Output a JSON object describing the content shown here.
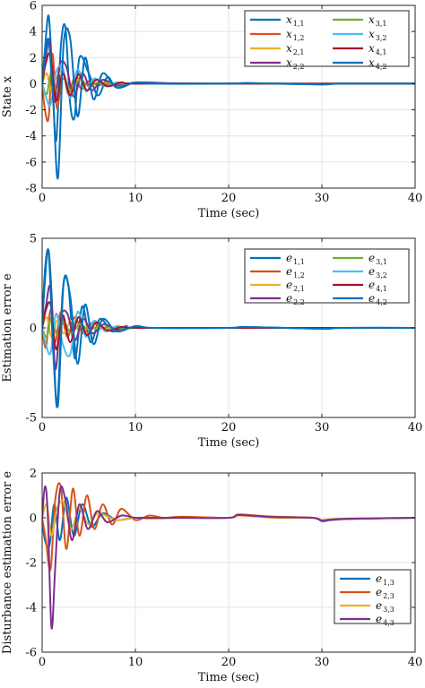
{
  "chart_data": [
    {
      "type": "line",
      "title": "",
      "xlabel": "Time (sec)",
      "ylabel": "State x",
      "xlim": [
        0,
        40
      ],
      "ylim": [
        -8,
        6
      ],
      "xticks": [
        0,
        10,
        20,
        30,
        40
      ],
      "yticks": [
        -8,
        -6,
        -4,
        -2,
        0,
        2,
        4,
        6
      ],
      "grid": true,
      "legend": {
        "placement": "top-right",
        "columns": 2
      },
      "series": [
        {
          "name": "x",
          "sub": "1,1",
          "color": "#0072BD",
          "x": [
            0,
            0.3,
            0.7,
            1.1,
            1.5,
            2.0,
            2.5,
            3.0,
            3.5,
            4.0,
            5.0,
            6.0,
            7.0,
            8.0,
            10.0,
            15.0,
            20.0,
            22.0,
            25.0,
            30.0,
            32.0,
            40.0
          ],
          "y": [
            0,
            2.6,
            5.2,
            0.5,
            -4.4,
            2.8,
            4.3,
            -1.5,
            -2.5,
            2.0,
            0.8,
            -0.9,
            0.5,
            -0.3,
            0.1,
            0.0,
            0.0,
            0.05,
            0.0,
            -0.05,
            0.0,
            0.0
          ]
        },
        {
          "name": "x",
          "sub": "1,2",
          "color": "#D95319",
          "x": [
            0,
            0.3,
            0.7,
            1.1,
            1.6,
            2.2,
            2.8,
            3.5,
            4.2,
            5.0,
            6.0,
            8.0,
            10.0,
            20.0,
            30.0,
            40.0
          ],
          "y": [
            0,
            -2.0,
            -2.6,
            2.3,
            -1.9,
            1.0,
            -0.8,
            0.5,
            -0.4,
            0.2,
            -0.1,
            0.05,
            0.0,
            0.0,
            0.0,
            0.0
          ]
        },
        {
          "name": "x",
          "sub": "2,1",
          "color": "#EDB120",
          "x": [
            0,
            0.5,
            1.0,
            1.5,
            2.2,
            3.0,
            4.0,
            5.0,
            6.0,
            8.0,
            10.0,
            20.0,
            40.0
          ],
          "y": [
            0,
            0.8,
            -0.6,
            0.4,
            0.9,
            -0.5,
            0.4,
            -0.2,
            0.1,
            0.0,
            0.0,
            0.0,
            0.0
          ]
        },
        {
          "name": "x",
          "sub": "2,2",
          "color": "#7E2F8E",
          "x": [
            0,
            0.4,
            0.8,
            1.3,
            1.9,
            2.6,
            3.4,
            4.3,
            5.3,
            6.5,
            8.0,
            10.0,
            20.0,
            40.0
          ],
          "y": [
            0,
            2.0,
            3.3,
            -1.4,
            1.5,
            1.3,
            -1.0,
            0.8,
            -0.5,
            0.3,
            -0.15,
            0.05,
            0.0,
            0.0
          ]
        },
        {
          "name": "x",
          "sub": "3,1",
          "color": "#77AC30",
          "x": [
            0,
            0.5,
            1.0,
            1.6,
            2.3,
            3.1,
            4.0,
            5.0,
            6.0,
            8.0,
            10.0,
            20.0,
            40.0
          ],
          "y": [
            0,
            -0.8,
            0.9,
            -0.6,
            0.4,
            -0.5,
            0.3,
            -0.2,
            0.1,
            0.0,
            0.0,
            0.0,
            0.0
          ]
        },
        {
          "name": "x",
          "sub": "3,2",
          "color": "#4DBEEE",
          "x": [
            0,
            0.4,
            0.9,
            1.5,
            2.2,
            3.0,
            3.8,
            4.7,
            5.6,
            6.8,
            8.0,
            10.0,
            20.0,
            40.0
          ],
          "y": [
            0,
            -1.0,
            -1.6,
            0.9,
            1.2,
            -1.1,
            1.1,
            -0.6,
            0.4,
            -0.2,
            0.1,
            0.0,
            0.0,
            0.0
          ]
        },
        {
          "name": "x",
          "sub": "4,1",
          "color": "#A2142F",
          "x": [
            0,
            0.4,
            0.9,
            1.5,
            2.2,
            3.0,
            3.9,
            4.8,
            5.8,
            7.0,
            8.5,
            10.0,
            20.0,
            40.0
          ],
          "y": [
            0,
            1.6,
            2.2,
            -1.3,
            0.8,
            -0.9,
            0.7,
            -0.5,
            0.3,
            -0.2,
            0.1,
            0.0,
            0.0,
            0.0
          ]
        },
        {
          "name": "x",
          "sub": "4,2",
          "color": "#0072BD",
          "x": [
            0,
            0.3,
            0.7,
            1.2,
            1.7,
            2.3,
            3.0,
            3.8,
            4.6,
            5.5,
            6.5,
            8.0,
            10.0,
            12.0,
            20.0,
            22.0,
            30.0,
            32.0,
            40.0
          ],
          "y": [
            0,
            2.0,
            3.3,
            -1.5,
            -7.2,
            3.0,
            3.5,
            -2.5,
            2.0,
            -1.2,
            0.8,
            -0.3,
            0.1,
            0.0,
            0.0,
            0.05,
            -0.05,
            0.0,
            0.0
          ]
        }
      ]
    },
    {
      "type": "line",
      "title": "",
      "xlabel": "Time (sec)",
      "ylabel": "Estimation error e",
      "xlim": [
        0,
        40
      ],
      "ylim": [
        -5,
        5
      ],
      "xticks": [
        0,
        10,
        20,
        30,
        40
      ],
      "yticks": [
        -5,
        0,
        5
      ],
      "grid": true,
      "legend": {
        "placement": "top-right",
        "columns": 2
      },
      "series": [
        {
          "name": "e",
          "sub": "1,1",
          "color": "#0072BD",
          "x": [
            0,
            0.3,
            0.7,
            1.1,
            1.6,
            2.2,
            2.8,
            3.5,
            4.3,
            5.2,
            6.2,
            7.5,
            9.0,
            10.0,
            20.0,
            22.0,
            30.0,
            32.0,
            40.0
          ],
          "y": [
            0,
            3.2,
            4.3,
            1.0,
            -4.4,
            2.0,
            2.4,
            -1.7,
            1.2,
            -0.8,
            0.5,
            -0.2,
            0.1,
            0.0,
            0.0,
            0.05,
            -0.05,
            0.0,
            0.0
          ]
        },
        {
          "name": "e",
          "sub": "1,2",
          "color": "#D95319",
          "x": [
            0,
            0.4,
            0.9,
            1.4,
            2.0,
            2.7,
            3.5,
            4.4,
            5.4,
            6.6,
            8.0,
            10.0,
            20.0,
            40.0
          ],
          "y": [
            0,
            -1.1,
            1.0,
            -0.8,
            0.9,
            -0.5,
            0.6,
            -0.3,
            0.3,
            -0.1,
            0.05,
            0.0,
            0.0,
            0.0
          ]
        },
        {
          "name": "e",
          "sub": "2,1",
          "color": "#EDB120",
          "x": [
            0,
            0.5,
            1.0,
            1.6,
            2.3,
            3.1,
            4.0,
            5.0,
            6.0,
            8.0,
            10.0,
            20.0,
            40.0
          ],
          "y": [
            0,
            0.6,
            -0.5,
            0.4,
            -0.3,
            0.4,
            -0.2,
            0.1,
            -0.05,
            0.0,
            0.0,
            0.0,
            0.0
          ]
        },
        {
          "name": "e",
          "sub": "2,2",
          "color": "#7E2F8E",
          "x": [
            0,
            0.4,
            0.9,
            1.4,
            2.0,
            2.7,
            3.5,
            4.4,
            5.4,
            6.6,
            8.0,
            10.0,
            20.0,
            40.0
          ],
          "y": [
            0,
            1.2,
            2.2,
            -2.3,
            0.6,
            0.8,
            -0.7,
            0.5,
            -0.3,
            0.2,
            -0.1,
            0.0,
            0.0,
            0.0
          ]
        },
        {
          "name": "e",
          "sub": "3,1",
          "color": "#77AC30",
          "x": [
            0,
            0.5,
            1.0,
            1.6,
            2.3,
            3.1,
            4.0,
            5.0,
            6.0,
            8.0,
            10.0,
            20.0,
            40.0
          ],
          "y": [
            0,
            -0.5,
            0.6,
            -0.4,
            0.3,
            -0.3,
            0.2,
            -0.1,
            0.05,
            0.0,
            0.0,
            0.0,
            0.0
          ]
        },
        {
          "name": "e",
          "sub": "3,2",
          "color": "#4DBEEE",
          "x": [
            0,
            0.4,
            0.9,
            1.5,
            2.2,
            3.0,
            3.8,
            4.7,
            5.6,
            6.8,
            8.0,
            10.0,
            20.0,
            40.0
          ],
          "y": [
            0,
            -0.9,
            -1.4,
            0.8,
            -0.9,
            -1.5,
            0.9,
            -0.5,
            0.4,
            -0.2,
            0.1,
            0.0,
            0.0,
            0.0
          ]
        },
        {
          "name": "e",
          "sub": "4,1",
          "color": "#A2142F",
          "x": [
            0,
            0.4,
            0.9,
            1.5,
            2.2,
            3.0,
            3.9,
            4.8,
            5.8,
            7.0,
            8.5,
            10.0,
            20.0,
            40.0
          ],
          "y": [
            0,
            1.0,
            1.3,
            -1.2,
            0.7,
            -0.8,
            0.6,
            -0.4,
            0.3,
            -0.15,
            0.05,
            0.0,
            0.0,
            0.0
          ]
        },
        {
          "name": "e",
          "sub": "4,2",
          "color": "#0072BD",
          "x": [
            0,
            0.3,
            0.7,
            1.2,
            1.7,
            2.3,
            3.0,
            3.8,
            4.6,
            5.5,
            6.5,
            8.0,
            10.0,
            12.0,
            20.0,
            22.0,
            30.0,
            32.0,
            40.0
          ],
          "y": [
            0,
            2.6,
            4.2,
            -1.5,
            -4.3,
            2.5,
            1.8,
            -2.0,
            1.3,
            -0.9,
            0.5,
            -0.2,
            0.1,
            0.0,
            0.0,
            0.05,
            -0.05,
            0.0,
            0.0
          ]
        }
      ]
    },
    {
      "type": "line",
      "title": "",
      "xlabel": "Time (sec)",
      "ylabel": "Disturbance estimation error e",
      "xlim": [
        0,
        40
      ],
      "ylim": [
        -6,
        2
      ],
      "xticks": [
        0,
        10,
        20,
        30,
        40
      ],
      "yticks": [
        -6,
        -4,
        -2,
        0,
        2
      ],
      "grid": true,
      "legend": {
        "placement": "lower-right",
        "columns": 1
      },
      "series": [
        {
          "name": "e",
          "sub": "1,3",
          "color": "#0072BD",
          "x": [
            0,
            0.3,
            0.8,
            1.3,
            1.9,
            2.6,
            3.4,
            4.3,
            5.3,
            6.5,
            8.0,
            10.0,
            12.0,
            15.0,
            20.0,
            21.0,
            23.0,
            25.0,
            29.0,
            30.0,
            31.0,
            33.0,
            40.0
          ],
          "y": [
            0,
            -1.0,
            -1.2,
            0.6,
            -1.0,
            0.9,
            -0.8,
            0.6,
            -0.4,
            0.2,
            -0.1,
            0.0,
            0.0,
            0.0,
            0.0,
            0.12,
            0.08,
            0.02,
            0.0,
            -0.15,
            -0.1,
            -0.05,
            0.0
          ]
        },
        {
          "name": "e",
          "sub": "2,3",
          "color": "#D95319",
          "x": [
            0,
            0.4,
            0.9,
            1.4,
            2.0,
            2.6,
            3.3,
            4.0,
            4.8,
            5.6,
            6.5,
            7.5,
            8.5,
            10.0,
            11.5,
            13.0,
            15.0,
            20.0,
            21.0,
            23.0,
            25.0,
            29.0,
            30.0,
            31.0,
            33.0,
            40.0
          ],
          "y": [
            0,
            -1.0,
            -2.3,
            0.8,
            1.4,
            -1.4,
            1.3,
            -0.8,
            1.0,
            -0.5,
            0.6,
            -0.3,
            0.4,
            -0.1,
            0.1,
            0.0,
            0.05,
            0.0,
            0.15,
            0.1,
            0.05,
            0.0,
            -0.12,
            -0.08,
            -0.05,
            0.0
          ]
        },
        {
          "name": "e",
          "sub": "3,3",
          "color": "#EDB120",
          "x": [
            0,
            0.5,
            1.0,
            1.6,
            2.3,
            3.1,
            4.0,
            5.0,
            6.0,
            8.0,
            10.0,
            12.0,
            15.0,
            20.0,
            21.0,
            23.0,
            25.0,
            29.0,
            30.0,
            31.0,
            33.0,
            40.0
          ],
          "y": [
            0,
            0.6,
            -0.8,
            0.4,
            0.7,
            -0.5,
            0.4,
            -0.3,
            0.2,
            -0.1,
            0.0,
            -0.05,
            0.0,
            0.0,
            0.1,
            0.06,
            0.0,
            0.0,
            -0.1,
            -0.06,
            -0.03,
            0.0
          ]
        },
        {
          "name": "e",
          "sub": "4,3",
          "color": "#7E2F8E",
          "x": [
            0,
            0.3,
            0.6,
            1.0,
            1.4,
            1.9,
            2.5,
            3.2,
            4.0,
            4.9,
            5.9,
            7.0,
            8.5,
            10.0,
            12.0,
            15.0,
            20.0,
            21.0,
            23.0,
            25.0,
            29.0,
            30.0,
            31.0,
            33.0,
            40.0
          ],
          "y": [
            0,
            1.4,
            0.2,
            -4.9,
            -2.2,
            1.2,
            0.8,
            -1.0,
            0.6,
            -0.5,
            0.3,
            -0.2,
            0.1,
            0.0,
            0.0,
            0.0,
            0.0,
            0.12,
            0.08,
            0.03,
            0.0,
            -0.12,
            -0.08,
            -0.04,
            0.0
          ]
        }
      ]
    }
  ]
}
